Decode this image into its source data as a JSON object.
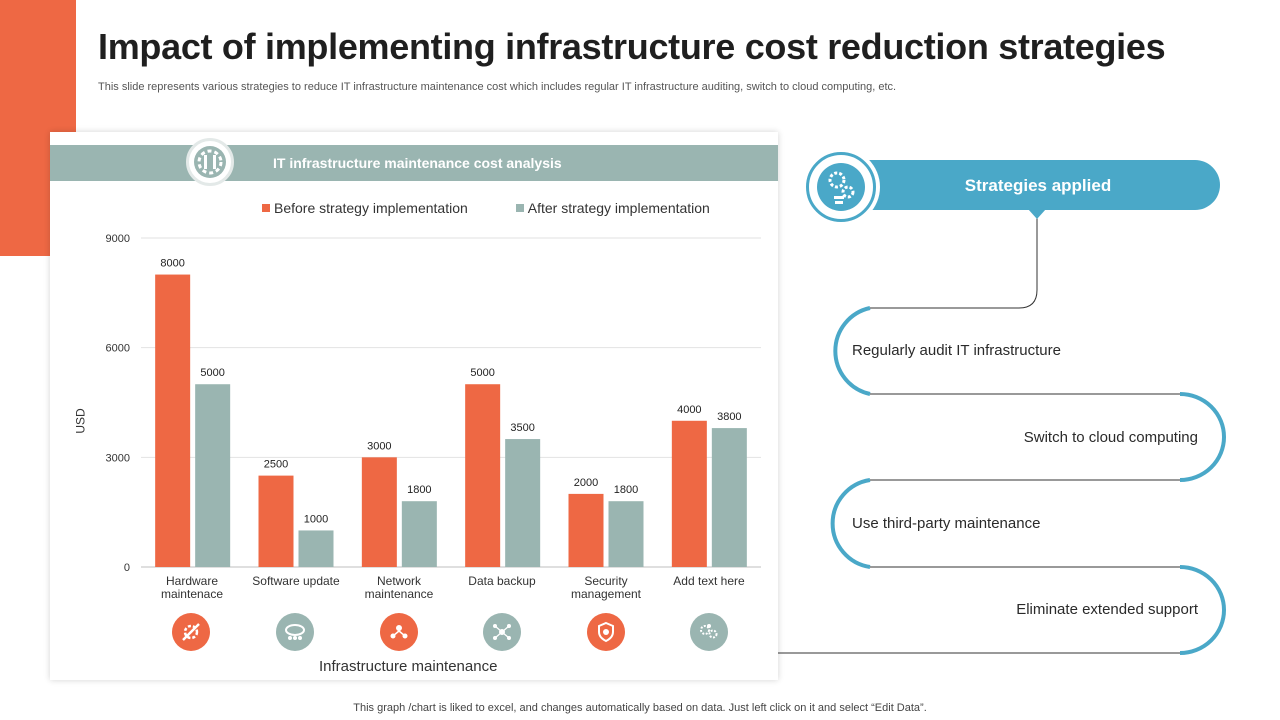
{
  "title": "Impact of implementing infrastructure cost reduction strategies",
  "subtitle": "This slide represents various strategies to reduce IT infrastructure maintenance cost which includes regular IT infrastructure auditing, switch to cloud computing, etc.",
  "footer": "This graph /chart is liked to excel, and changes automatically based on data. Just left click on it and select “Edit Data”.",
  "colors": {
    "accent": "#ee6844",
    "before": "#ee6844",
    "after": "#9ab5b1",
    "header": "#9ab5b1",
    "strategy": "#4aa8c8"
  },
  "chart_header": {
    "title": "IT infrastructure maintenance cost analysis",
    "icon": "gear-wrench-icon"
  },
  "category_icons": [
    "tools-gear-icon",
    "cloud-network-icon",
    "network-people-icon",
    "data-share-icon",
    "shield-gear-icon",
    "bulb-gears-icon"
  ],
  "chart_data": {
    "type": "bar",
    "categories": [
      "Hardware\nmaintenace",
      "Software update",
      "Network\nmaintenance",
      "Data backup",
      "Security\nmanagement",
      "Add text here"
    ],
    "series": [
      {
        "name": "Before strategy implementation",
        "values": [
          8000,
          2500,
          3000,
          5000,
          2000,
          4000
        ]
      },
      {
        "name": "After strategy implementation",
        "values": [
          5000,
          1000,
          1800,
          3500,
          1800,
          3800
        ]
      }
    ],
    "title": "",
    "xlabel": "Infrastructure  maintenance",
    "ylabel": "USD",
    "ylim": [
      0,
      9000
    ],
    "yticks": [
      0,
      3000,
      6000,
      9000
    ],
    "grid": true,
    "legend": "top"
  },
  "strategies": {
    "heading": "Strategies applied",
    "icon": "bulb-gears-icon",
    "items": [
      "Regularly  audit IT infrastructure",
      "Switch to cloud computing",
      "Use third-party maintenance",
      "Eliminate extended support"
    ]
  }
}
